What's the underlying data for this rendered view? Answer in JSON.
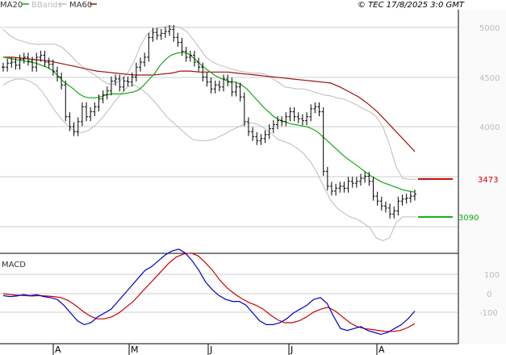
{
  "header": {
    "legend": [
      {
        "name": "MA20",
        "color": "#11aa11"
      },
      {
        "name": "BBands",
        "color": "#bbbbbb"
      },
      {
        "name": "MA60",
        "color": "#a01010"
      }
    ],
    "copyright": "© TEC 17/8/2025 3:0 GMT"
  },
  "chart_data": [
    {
      "type": "ohlc",
      "title": "",
      "y_axis": {
        "ticks": [
          5000,
          4500,
          4000
        ],
        "range": [
          2550,
          5150
        ]
      },
      "x_axis": {
        "ticks": [
          "A",
          "M",
          "J",
          "J",
          "A"
        ]
      },
      "price_markers": [
        {
          "value": 3473,
          "label": "3473",
          "color": "#cc0000"
        },
        {
          "value": 3090,
          "label": "3090",
          "color": "#11aa11"
        }
      ],
      "close": [
        4600,
        4640,
        4650,
        4620,
        4680,
        4700,
        4660,
        4600,
        4700,
        4720,
        4650,
        4630,
        4560,
        4500,
        4420,
        4100,
        4000,
        3950,
        4050,
        4200,
        4100,
        4150,
        4200,
        4280,
        4320,
        4360,
        4460,
        4480,
        4400,
        4460,
        4450,
        4500,
        4600,
        4650,
        4700,
        4900,
        4950,
        4920,
        4940,
        4960,
        4980,
        4900,
        4850,
        4760,
        4700,
        4720,
        4650,
        4600,
        4500,
        4450,
        4380,
        4420,
        4400,
        4480,
        4450,
        4350,
        4400,
        4300,
        4050,
        3950,
        3900,
        3860,
        3880,
        3920,
        3980,
        4020,
        4060,
        4050,
        4100,
        4150,
        4100,
        4080,
        4060,
        4100,
        4180,
        4200,
        4150,
        3550,
        3400,
        3350,
        3380,
        3400,
        3380,
        3450,
        3430,
        3450,
        3480,
        3500,
        3450,
        3300,
        3250,
        3200,
        3180,
        3120,
        3150,
        3250,
        3270,
        3280,
        3300,
        3320
      ],
      "series": [
        {
          "name": "MA20",
          "color": "#11aa11",
          "values": [
            4700,
            4690,
            4680,
            4670,
            4660,
            4650,
            4640,
            4620,
            4600,
            4570,
            4520,
            4460,
            4420,
            4380,
            4330,
            4300,
            4290,
            4290,
            4300,
            4320,
            4330,
            4330,
            4330,
            4340,
            4350,
            4370,
            4420,
            4480,
            4540,
            4620,
            4680,
            4720,
            4740,
            4750,
            4740,
            4700,
            4650,
            4600,
            4560,
            4520,
            4490,
            4470,
            4450,
            4450,
            4420,
            4380,
            4320,
            4260,
            4200,
            4150,
            4100,
            4070,
            4050,
            4030,
            4020,
            4010,
            4000,
            3980,
            3950,
            3900,
            3850,
            3800,
            3750,
            3700,
            3660,
            3620,
            3580,
            3540,
            3500,
            3470,
            3440,
            3420,
            3400,
            3380,
            3360,
            3350,
            3340
          ],
          "x_start": 0
        },
        {
          "name": "BBands upper",
          "color": "#bbbbbb",
          "values": [
            4980,
            4920,
            4880,
            4860,
            4840,
            4830,
            4830,
            4830,
            4830,
            4800,
            4740,
            4670,
            4610,
            4560,
            4520,
            4470,
            4430,
            4430,
            4470,
            4540,
            4660,
            4820,
            4930,
            4980,
            5000,
            5010,
            5010,
            5000,
            4960,
            4880,
            4790,
            4700,
            4650,
            4620,
            4600,
            4580,
            4560,
            4550,
            4540,
            4540,
            4530,
            4490,
            4450,
            4400,
            4390,
            4380,
            4380,
            4360,
            4340,
            4320,
            4310,
            4290,
            4280,
            4250,
            4220,
            4180,
            4150,
            4100,
            4000,
            3820,
            3600,
            3480,
            3470,
            3470
          ],
          "x_start": 0
        },
        {
          "name": "BBands lower",
          "color": "#bbbbbb",
          "values": [
            4420,
            4460,
            4480,
            4480,
            4460,
            4420,
            4350,
            4250,
            4150,
            4070,
            4000,
            3950,
            3940,
            3960,
            4010,
            4080,
            4160,
            4250,
            4330,
            4400,
            4420,
            4380,
            4330,
            4260,
            4180,
            4100,
            4040,
            3980,
            3920,
            3870,
            3860,
            3860,
            3870,
            3900,
            3930,
            3970,
            4000,
            4030,
            4040,
            4020,
            3980,
            3930,
            3870,
            3850,
            3820,
            3780,
            3720,
            3640,
            3530,
            3390,
            3260,
            3180,
            3130,
            3090,
            3070,
            3030,
            2980,
            2880,
            2850,
            2880,
            3030,
            3090,
            3090,
            3090
          ],
          "x_start": 0
        },
        {
          "name": "MA60",
          "color": "#a01010",
          "values": [
            4700,
            4700,
            4690,
            4680,
            4670,
            4660,
            4640,
            4620,
            4600,
            4580,
            4560,
            4550,
            4540,
            4530,
            4520,
            4520,
            4520,
            4530,
            4540,
            4560,
            4560,
            4550,
            4550,
            4550,
            4550,
            4540,
            4530,
            4520,
            4510,
            4500,
            4490,
            4480,
            4470,
            4460,
            4450,
            4440,
            4400,
            4350,
            4300,
            4230,
            4150,
            4050,
            3950,
            3850,
            3750
          ],
          "x_start": 0
        }
      ]
    },
    {
      "type": "line",
      "title": "MACD",
      "y_axis": {
        "ticks": [
          100,
          0,
          -100
        ],
        "range": [
          -200,
          210
        ]
      },
      "series": [
        {
          "name": "MACD",
          "color": "#0000cc",
          "values": [
            -10,
            -15,
            -12,
            -5,
            -10,
            -5,
            -15,
            -20,
            -30,
            -60,
            -100,
            -140,
            -160,
            -150,
            -120,
            -100,
            -80,
            -40,
            0,
            40,
            80,
            120,
            140,
            170,
            200,
            220,
            230,
            210,
            170,
            120,
            60,
            20,
            -10,
            -30,
            -40,
            -40,
            -60,
            -100,
            -140,
            -160,
            -160,
            -150,
            -130,
            -100,
            -80,
            -60,
            -30,
            -20,
            -50,
            -120,
            -180,
            -190,
            -180,
            -170,
            -190,
            -200,
            -210,
            -200,
            -180,
            -160,
            -130,
            -90
          ],
          "x_start": 0
        },
        {
          "name": "Signal",
          "color": "#cc0000",
          "values": [
            0,
            -5,
            -8,
            -10,
            -12,
            -10,
            -12,
            -15,
            -20,
            -35,
            -60,
            -90,
            -115,
            -130,
            -130,
            -120,
            -100,
            -70,
            -40,
            0,
            40,
            80,
            120,
            160,
            190,
            205,
            210,
            195,
            160,
            120,
            70,
            30,
            0,
            -25,
            -45,
            -60,
            -80,
            -110,
            -135,
            -150,
            -150,
            -140,
            -120,
            -95,
            -80,
            -70,
            -90,
            -120,
            -150,
            -170,
            -180,
            -185,
            -190,
            -195,
            -195,
            -190,
            -175,
            -155
          ],
          "x_start": 0
        }
      ]
    }
  ]
}
